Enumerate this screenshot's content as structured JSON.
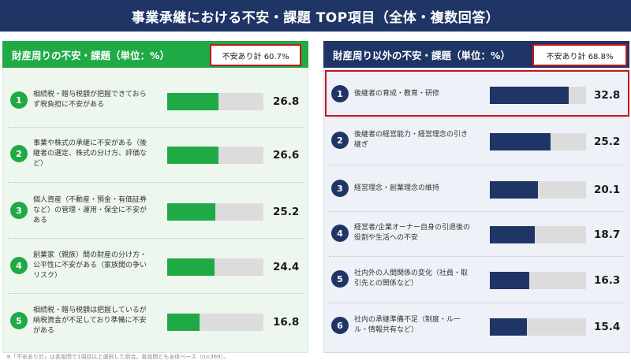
{
  "title": "事業承継における不安・課題 TOP項目（全体・複数回答）",
  "left_panel": {
    "header": "財産周りの不安・課題（単位：%）",
    "total": "不安あり計 60.7%"
  },
  "right_panel": {
    "header": "財産周り以外の不安・課題（単位：%）",
    "total": "不安あり計 68.8%"
  },
  "footnote": "※「不安あり計」は各設問で1項目以上選択した割合。各設問とも全体ベース（n=369）。",
  "chart_data": [
    {
      "type": "bar",
      "orientation": "horizontal",
      "title": "財産周りの不安・課題（単位：%）",
      "annotation": "不安あり計 60.7%",
      "xlim": [
        0,
        50
      ],
      "rank_labels": [
        "1",
        "2",
        "3",
        "4",
        "5"
      ],
      "categories": [
        "相続税・贈与税額が把握できておらず税負担に不安がある",
        "事業や株式の承継に不安がある（後継者の選定、株式の分け方、評価など）",
        "個人資産（不動産・預金・有価証券など）の管理・運用・保全に不安がある",
        "創業家（親族）間の財産の分け方・公平性に不安がある（家族間の争いリスク）",
        "相続税・贈与税額は把握しているが納税資金が不足しており準備に不安がある"
      ],
      "values": [
        26.8,
        26.6,
        25.2,
        24.4,
        16.8
      ],
      "value_labels": [
        "26.8",
        "26.6",
        "25.2",
        "24.4",
        "16.8"
      ],
      "colors": {
        "bar": "#1faa46",
        "track": "#dcdcdc"
      }
    },
    {
      "type": "bar",
      "orientation": "horizontal",
      "title": "財産周り以外の不安・課題（単位：%）",
      "annotation": "不安あり計 68.8%",
      "xlim": [
        0,
        40
      ],
      "rank_labels": [
        "1",
        "2",
        "3",
        "4",
        "5",
        "6"
      ],
      "categories": [
        "後継者の育成・教育・研修",
        "後継者の経営能力・経営理念の引き継ぎ",
        "経営理念・創業理念の維持",
        "経営者/企業オーナー自身の引退後の役割や生活への不安",
        "社内外の人間関係の変化（社員・取引先との関係など）",
        "社内の承継準備不足（制度・ルール・情報共有など）"
      ],
      "values": [
        32.8,
        25.2,
        20.1,
        18.7,
        16.3,
        15.4
      ],
      "value_labels": [
        "32.8",
        "25.2",
        "20.1",
        "18.7",
        "16.3",
        "15.4"
      ],
      "highlighted_rank": "1",
      "colors": {
        "bar": "#1f3566",
        "track": "#dcdcdc",
        "highlight": "#c4161c"
      }
    }
  ]
}
